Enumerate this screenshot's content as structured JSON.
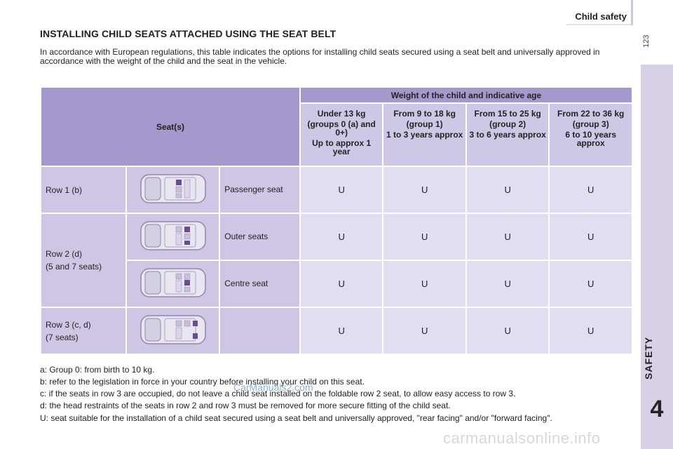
{
  "header": {
    "section_title": "Child safety",
    "page_number": "123"
  },
  "side_tab": {
    "label": "SAFETY",
    "chapter": "4"
  },
  "title": "INSTALLING CHILD SEATS ATTACHED USING THE SEAT BELT",
  "intro": "In accordance with European regulations, this table indicates the options for installing child seats secured using a seat belt and universally approved in accordance with the weight of the child and the seat in the vehicle.",
  "table": {
    "seat_header": "Seat(s)",
    "weight_header": "Weight of the child and indicative age",
    "columns": [
      {
        "title": "Under 13 kg",
        "group": "(groups 0 (a) and 0+)",
        "age": "Up to approx 1 year"
      },
      {
        "title": "From 9 to 18 kg",
        "group": "(group 1)",
        "age": "1 to 3 years approx"
      },
      {
        "title": "From 15 to 25 kg",
        "group": "(group 2)",
        "age": "3 to 6 years approx"
      },
      {
        "title": "From 22 to 36 kg",
        "group": "(group 3)",
        "age": "6 to 10 years approx"
      }
    ],
    "rows": [
      {
        "row_label": "Row 1 (b)",
        "seat": "Passenger seat",
        "values": [
          "U",
          "U",
          "U",
          "U"
        ]
      },
      {
        "row_label_line1": "Row 2 (d)",
        "row_label_line2": "(5 and 7 seats)",
        "seat": "Outer seats",
        "values": [
          "U",
          "U",
          "U",
          "U"
        ]
      },
      {
        "seat": "Centre seat",
        "values": [
          "U",
          "U",
          "U",
          "U"
        ]
      },
      {
        "row_label_line1": "Row 3 (c, d)",
        "row_label_line2": "(7 seats)",
        "seat": "",
        "values": [
          "U",
          "U",
          "U",
          "U"
        ]
      }
    ]
  },
  "notes": [
    "a: Group 0: from birth to 10 kg.",
    "b: refer to the legislation in force in your country before installing your child on this seat.",
    "c: if the seats in row 3 are occupied, do not leave a child seat installed on the foldable row 2 seat, to allow easy access to row 3.",
    "d: the head restraints of the seats in row 2 and row 3 must be removed for more secure fitting of the child seat.",
    "U: seat suitable for the installation of a child seat secured using a seat belt and universally approved, \"rear facing\" and/or \"forward facing\"."
  ],
  "watermarks": {
    "top": "CarManuals2.com",
    "bottom": "carmanualsonline.info"
  },
  "colors": {
    "header_purple": "#a598cc",
    "cell_light": "#e2ddf0",
    "cell_mid": "#cec6e4",
    "side_strip": "#d9d0e6"
  }
}
